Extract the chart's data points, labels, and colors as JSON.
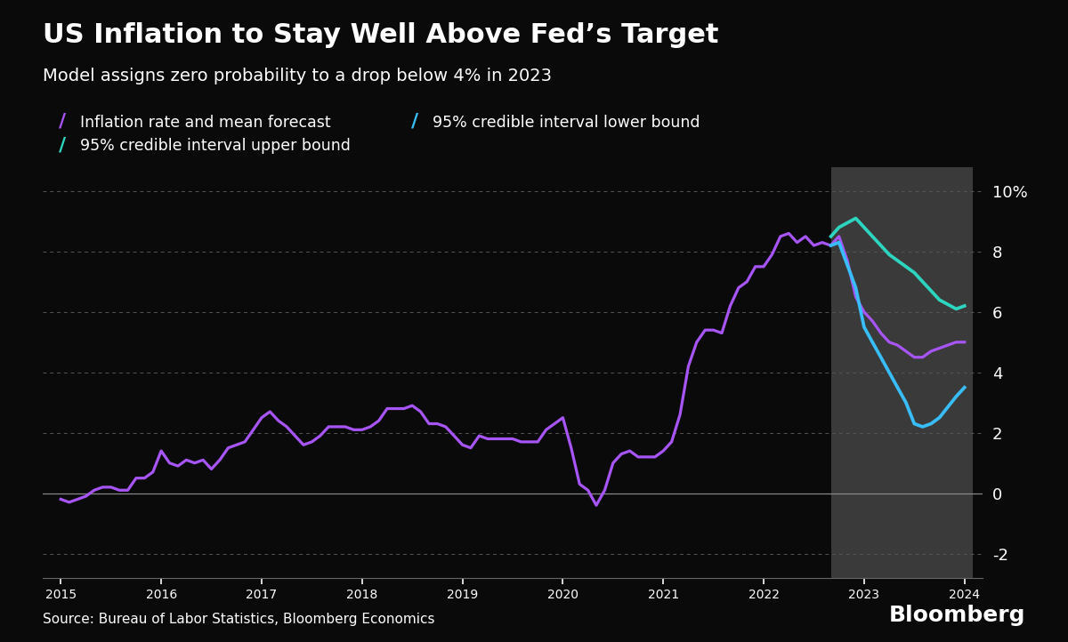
{
  "title": "US Inflation to Stay Well Above Fed’s Target",
  "subtitle": "Model assigns zero probability to a drop below 4% in 2023",
  "source": "Source: Bureau of Labor Statistics, Bloomberg Economics",
  "background_color": "#0a0a0a",
  "plot_bg_color": "#0a0a0a",
  "forecast_bg_color": "#3a3a3a",
  "text_color": "#ffffff",
  "grid_color": "#555555",
  "title_fontsize": 22,
  "subtitle_fontsize": 14,
  "legend_fontsize": 12.5,
  "axis_label_fontsize": 13,
  "ylim": [
    -2.8,
    10.8
  ],
  "yticks": [
    -2,
    0,
    2,
    4,
    6,
    8
  ],
  "ytick_labels": [
    "-2",
    "0",
    "2",
    "4",
    "6",
    "8"
  ],
  "ytick_pct_label": "10%",
  "ytick_pct_value": 10,
  "forecast_start": 2022.67,
  "forecast_end": 2024.08,
  "inflation_color": "#a855f7",
  "lower_bound_color": "#38bdf8",
  "upper_bound_color": "#2dd4bf",
  "line_width": 2.3,
  "inflation_data": {
    "x": [
      2015.0,
      2015.083,
      2015.167,
      2015.25,
      2015.333,
      2015.417,
      2015.5,
      2015.583,
      2015.667,
      2015.75,
      2015.833,
      2015.917,
      2016.0,
      2016.083,
      2016.167,
      2016.25,
      2016.333,
      2016.417,
      2016.5,
      2016.583,
      2016.667,
      2016.75,
      2016.833,
      2016.917,
      2017.0,
      2017.083,
      2017.167,
      2017.25,
      2017.333,
      2017.417,
      2017.5,
      2017.583,
      2017.667,
      2017.75,
      2017.833,
      2017.917,
      2018.0,
      2018.083,
      2018.167,
      2018.25,
      2018.333,
      2018.417,
      2018.5,
      2018.583,
      2018.667,
      2018.75,
      2018.833,
      2018.917,
      2019.0,
      2019.083,
      2019.167,
      2019.25,
      2019.333,
      2019.417,
      2019.5,
      2019.583,
      2019.667,
      2019.75,
      2019.833,
      2019.917,
      2020.0,
      2020.083,
      2020.167,
      2020.25,
      2020.333,
      2020.417,
      2020.5,
      2020.583,
      2020.667,
      2020.75,
      2020.833,
      2020.917,
      2021.0,
      2021.083,
      2021.167,
      2021.25,
      2021.333,
      2021.417,
      2021.5,
      2021.583,
      2021.667,
      2021.75,
      2021.833,
      2021.917,
      2022.0,
      2022.083,
      2022.167,
      2022.25,
      2022.333,
      2022.417,
      2022.5,
      2022.583,
      2022.667,
      2022.75,
      2022.833,
      2022.917,
      2023.0,
      2023.083,
      2023.167,
      2023.25,
      2023.333,
      2023.417,
      2023.5,
      2023.583,
      2023.667,
      2023.75,
      2023.833,
      2023.917,
      2024.0
    ],
    "y": [
      -0.2,
      -0.3,
      -0.2,
      -0.1,
      0.1,
      0.2,
      0.2,
      0.1,
      0.1,
      0.5,
      0.5,
      0.7,
      1.4,
      1.0,
      0.9,
      1.1,
      1.0,
      1.1,
      0.8,
      1.1,
      1.5,
      1.6,
      1.7,
      2.1,
      2.5,
      2.7,
      2.4,
      2.2,
      1.9,
      1.6,
      1.7,
      1.9,
      2.2,
      2.2,
      2.2,
      2.1,
      2.1,
      2.2,
      2.4,
      2.8,
      2.8,
      2.8,
      2.9,
      2.7,
      2.3,
      2.3,
      2.2,
      1.9,
      1.6,
      1.5,
      1.9,
      1.8,
      1.8,
      1.8,
      1.8,
      1.7,
      1.7,
      1.7,
      2.1,
      2.3,
      2.5,
      1.5,
      0.3,
      0.1,
      -0.4,
      0.1,
      1.0,
      1.3,
      1.4,
      1.2,
      1.2,
      1.2,
      1.4,
      1.7,
      2.6,
      4.2,
      5.0,
      5.4,
      5.4,
      5.3,
      6.2,
      6.8,
      7.0,
      7.5,
      7.5,
      7.9,
      8.5,
      8.6,
      8.3,
      8.5,
      8.2,
      8.3,
      8.2,
      8.5,
      7.7,
      6.5,
      6.0,
      5.7,
      5.3,
      5.0,
      4.9,
      4.7,
      4.5,
      4.5,
      4.7,
      4.8,
      4.9,
      5.0,
      5.0
    ]
  },
  "lower_bound_data": {
    "x": [
      2022.67,
      2022.75,
      2022.917,
      2023.0,
      2023.083,
      2023.167,
      2023.25,
      2023.333,
      2023.417,
      2023.5,
      2023.583,
      2023.667,
      2023.75,
      2023.917,
      2024.0
    ],
    "y": [
      8.2,
      8.3,
      6.8,
      5.5,
      5.0,
      4.5,
      4.0,
      3.5,
      3.0,
      2.3,
      2.2,
      2.3,
      2.5,
      3.2,
      3.5
    ]
  },
  "upper_bound_data": {
    "x": [
      2022.67,
      2022.75,
      2022.917,
      2023.0,
      2023.083,
      2023.167,
      2023.25,
      2023.417,
      2023.5,
      2023.583,
      2023.667,
      2023.75,
      2023.917,
      2024.0
    ],
    "y": [
      8.5,
      8.8,
      9.1,
      8.8,
      8.5,
      8.2,
      7.9,
      7.5,
      7.3,
      7.0,
      6.7,
      6.4,
      6.1,
      6.2
    ]
  },
  "xtick_positions": [
    2015,
    2016,
    2017,
    2018,
    2019,
    2020,
    2021,
    2022,
    2023,
    2024
  ],
  "xtick_labels": [
    "2015",
    "2016",
    "2017",
    "2018",
    "2019",
    "2020",
    "2021",
    "2022",
    "2023",
    "2024"
  ]
}
